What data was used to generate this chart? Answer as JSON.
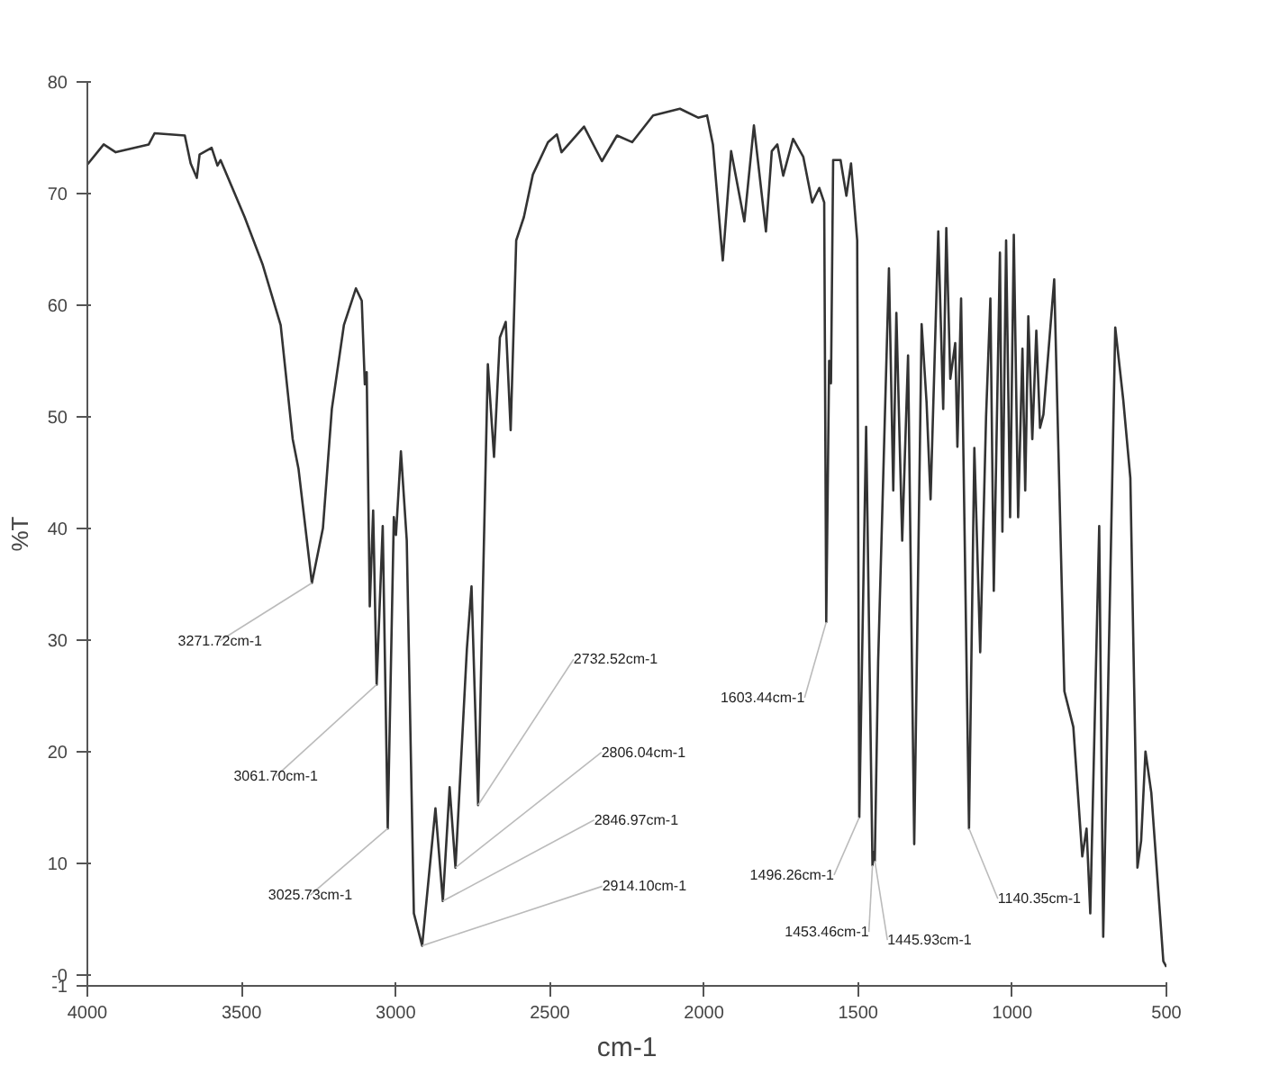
{
  "chart_data": {
    "type": "line",
    "xlabel": "cm-1",
    "ylabel": "%T",
    "color": "#333333",
    "xlim": [
      4000,
      500
    ],
    "ylim": [
      -1,
      80
    ],
    "xticks": [
      4000,
      3500,
      3000,
      2500,
      2000,
      1500,
      1000,
      500
    ],
    "yticks": [
      {
        "value": -1,
        "label": "-1"
      },
      {
        "value": 0,
        "label": "-0"
      },
      10,
      20,
      30,
      40,
      50,
      60,
      70,
      80
    ],
    "x": [
      4000,
      3947,
      3908,
      3801,
      3782,
      3684,
      3665,
      3645,
      3636,
      3597,
      3578,
      3568,
      3490,
      3431,
      3373,
      3334,
      3315,
      3271.72,
      3236,
      3207,
      3168,
      3129,
      3110,
      3100,
      3094,
      3084,
      3073,
      3061.7,
      3042,
      3025.73,
      3006,
      2999,
      2983,
      2964,
      2941,
      2914.1,
      2871,
      2846.97,
      2825,
      2806.04,
      2769,
      2754,
      2732.52,
      2701,
      2681,
      2662,
      2643,
      2627,
      2609,
      2584,
      2555,
      2506,
      2477,
      2462,
      2389,
      2331,
      2282,
      2233,
      2165,
      2078,
      2019,
      1990,
      1971,
      1939,
      1912,
      1869,
      1838,
      1799,
      1780,
      1762,
      1743,
      1711,
      1678,
      1649,
      1626,
      1610,
      1603.44,
      1594,
      1588,
      1581,
      1557,
      1538,
      1523,
      1503,
      1496.26,
      1474,
      1453.46,
      1449,
      1445.93,
      1435,
      1400,
      1386,
      1376,
      1357,
      1338,
      1318,
      1294,
      1278,
      1265,
      1240,
      1224,
      1214,
      1201,
      1185,
      1178,
      1166,
      1140.35,
      1123,
      1104,
      1085,
      1071,
      1060,
      1040,
      1032,
      1020,
      1007,
      995,
      981,
      967,
      958,
      948,
      935,
      922,
      910,
      899,
      864,
      831,
      802,
      773,
      759,
      747,
      718,
      705,
      666,
      640,
      617,
      594,
      582,
      568,
      549,
      510,
      500
    ],
    "values": [
      72.6,
      74.4,
      73.7,
      74.4,
      75.4,
      75.2,
      72.7,
      71.4,
      73.5,
      74.1,
      72.5,
      73.0,
      67.9,
      63.6,
      58.2,
      48.0,
      45.3,
      35.1,
      40.0,
      50.7,
      58.2,
      61.5,
      60.4,
      52.9,
      54.0,
      33.0,
      41.6,
      26.0,
      40.2,
      13.1,
      41.0,
      39.4,
      46.9,
      38.9,
      5.5,
      2.6,
      14.9,
      6.6,
      16.8,
      9.6,
      29.2,
      34.8,
      15.2,
      54.7,
      46.4,
      57.1,
      58.5,
      48.8,
      65.8,
      67.9,
      71.7,
      74.6,
      75.3,
      73.7,
      76.0,
      72.9,
      75.2,
      74.6,
      77.0,
      77.6,
      76.8,
      77.0,
      74.4,
      64.0,
      73.8,
      67.5,
      76.1,
      66.6,
      73.8,
      74.4,
      71.6,
      74.9,
      73.3,
      69.2,
      70.5,
      69.2,
      31.6,
      55,
      53,
      73.0,
      73.0,
      69.8,
      72.7,
      65.8,
      14.1,
      49.1,
      9.8,
      11,
      10.2,
      28.1,
      63.3,
      43.4,
      59.3,
      38.9,
      55.5,
      11.7,
      58.3,
      51.3,
      42.6,
      66.6,
      50.7,
      66.9,
      53.4,
      56.6,
      47.3,
      60.6,
      13.1,
      47.2,
      28.9,
      50,
      60.6,
      34.4,
      64.7,
      39.7,
      65.8,
      41,
      66.3,
      41,
      56.1,
      43.4,
      59,
      48,
      57.7,
      49,
      50.2,
      62.3,
      25.4,
      22.2,
      10.6,
      13.1,
      5.5,
      40.2,
      3.4,
      58,
      51.5,
      44.5,
      9.6,
      12,
      20,
      16.3,
      1.2,
      0.7
    ],
    "annotations": [
      {
        "text": "3271.72cm-1",
        "x": 3271.72,
        "y": 35.1
      },
      {
        "text": "3061.70cm-1",
        "x": 3061.7,
        "y": 26.0
      },
      {
        "text": "3025.73cm-1",
        "x": 3025.73,
        "y": 13.1
      },
      {
        "text": "2914.10cm-1",
        "x": 2914.1,
        "y": 2.6
      },
      {
        "text": "2846.97cm-1",
        "x": 2846.97,
        "y": 6.6
      },
      {
        "text": "2806.04cm-1",
        "x": 2806.04,
        "y": 9.6
      },
      {
        "text": "2732.52cm-1",
        "x": 2732.52,
        "y": 15.2
      },
      {
        "text": "1603.44cm-1",
        "x": 1603.44,
        "y": 31.6
      },
      {
        "text": "1496.26cm-1",
        "x": 1496.26,
        "y": 14.1
      },
      {
        "text": "1453.46cm-1",
        "x": 1453.46,
        "y": 9.8
      },
      {
        "text": "1445.93cm-1",
        "x": 1445.93,
        "y": 10.2
      },
      {
        "text": "1140.35cm-1",
        "x": 1140.35,
        "y": 13.1
      }
    ]
  }
}
